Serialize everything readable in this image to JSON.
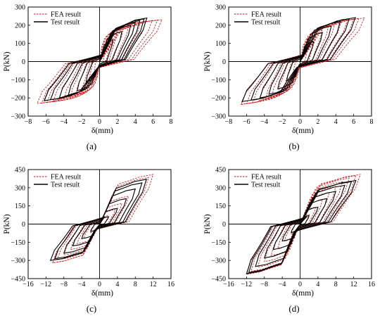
{
  "chart_data": [
    {
      "type": "line",
      "panel_label": "(a)",
      "xlabel": "δ(mm)",
      "ylabel": "P(kN)",
      "xlim": [
        -8,
        8
      ],
      "ylim": [
        -300,
        300
      ],
      "xticks": [
        -8,
        -6,
        -4,
        -2,
        0,
        2,
        4,
        6,
        8
      ],
      "yticks": [
        -300,
        -200,
        -100,
        0,
        100,
        200,
        300
      ],
      "legend_position": "top-left",
      "series": [
        {
          "name": "FEA result",
          "style": "dashed",
          "color": "#cc1111",
          "cycles": [
            [
              0.8,
              120
            ],
            [
              1.4,
              160
            ],
            [
              2.0,
              180
            ],
            [
              2.7,
              195
            ],
            [
              3.3,
              205
            ],
            [
              4.0,
              212
            ],
            [
              4.6,
              218
            ],
            [
              5.2,
              222
            ],
            [
              5.9,
              226
            ],
            [
              6.5,
              229
            ],
            [
              7.0,
              231
            ]
          ],
          "negative_cycles": [
            [
              -0.8,
              -120
            ],
            [
              -1.4,
              -160
            ],
            [
              -2.0,
              -180
            ],
            [
              -2.7,
              -195
            ],
            [
              -3.3,
              -205
            ],
            [
              -4.0,
              -212
            ],
            [
              -4.6,
              -218
            ],
            [
              -5.2,
              -222
            ],
            [
              -5.9,
              -226
            ],
            [
              -6.5,
              -229
            ],
            [
              -7.0,
              -231
            ]
          ],
          "pinch": 0.05
        },
        {
          "name": "Test result",
          "style": "solid",
          "color": "#000000",
          "cycles": [
            [
              1.5,
              120
            ],
            [
              2.5,
              165
            ],
            [
              3.5,
              200
            ],
            [
              4.0,
              215
            ],
            [
              4.5,
              225
            ],
            [
              5.0,
              235
            ],
            [
              5.3,
              240
            ]
          ],
          "negative_cycles": [
            [
              -1.5,
              -110
            ],
            [
              -2.5,
              -160
            ],
            [
              -3.5,
              -185
            ],
            [
              -4.5,
              -200
            ],
            [
              -5.5,
              -210
            ],
            [
              -6.2,
              -215
            ]
          ],
          "pinch": 0.1
        }
      ]
    },
    {
      "type": "line",
      "panel_label": "(b)",
      "xlabel": "δ(mm)",
      "ylabel": "P(kN)",
      "xlim": [
        -8,
        8
      ],
      "ylim": [
        -300,
        300
      ],
      "xticks": [
        -8,
        -6,
        -4,
        -2,
        0,
        2,
        4,
        6,
        8
      ],
      "yticks": [
        -300,
        -200,
        -100,
        0,
        100,
        200,
        300
      ],
      "legend_position": "top-left",
      "series": [
        {
          "name": "FEA result",
          "style": "dashed",
          "color": "#cc1111",
          "cycles": [
            [
              1.0,
              120
            ],
            [
              1.8,
              160
            ],
            [
              2.5,
              185
            ],
            [
              3.2,
              200
            ],
            [
              3.9,
              212
            ],
            [
              4.6,
              220
            ],
            [
              5.3,
              228
            ],
            [
              6.0,
              234
            ],
            [
              6.6,
              238
            ],
            [
              7.2,
              240
            ]
          ],
          "negative_cycles": [
            [
              -1.0,
              -120
            ],
            [
              -1.8,
              -160
            ],
            [
              -2.5,
              -185
            ],
            [
              -3.2,
              -200
            ],
            [
              -3.9,
              -212
            ],
            [
              -4.6,
              -220
            ],
            [
              -5.3,
              -226
            ],
            [
              -6.0,
              -232
            ],
            [
              -6.6,
              -236
            ]
          ],
          "pinch": 0.05
        },
        {
          "name": "Test result",
          "style": "solid",
          "color": "#000000",
          "cycles": [
            [
              1.5,
              110
            ],
            [
              2.5,
              160
            ],
            [
              3.5,
              195
            ],
            [
              4.5,
              220
            ],
            [
              5.5,
              235
            ],
            [
              6.2,
              242
            ]
          ],
          "negative_cycles": [
            [
              -1.5,
              -105
            ],
            [
              -2.5,
              -150
            ],
            [
              -3.5,
              -180
            ],
            [
              -4.5,
              -200
            ],
            [
              -5.5,
              -212
            ],
            [
              -6.5,
              -220
            ]
          ],
          "pinch": 0.2
        }
      ]
    },
    {
      "type": "line",
      "panel_label": "(c)",
      "xlabel": "δ(mm)",
      "ylabel": "P(kN)",
      "xlim": [
        -16,
        16
      ],
      "ylim": [
        -450,
        450
      ],
      "xticks": [
        -16,
        -12,
        -8,
        -4,
        0,
        4,
        8,
        12,
        16
      ],
      "yticks": [
        -450,
        -300,
        -150,
        0,
        150,
        300,
        450
      ],
      "legend_position": "top-left",
      "series": [
        {
          "name": "FEA result",
          "style": "dashed",
          "color": "#cc1111",
          "cycles": [
            [
              2.0,
              70
            ],
            [
              3.5,
              120
            ],
            [
              5.0,
              170
            ],
            [
              6.5,
              230
            ],
            [
              8.0,
              290
            ],
            [
              9.5,
              340
            ],
            [
              11.0,
              385
            ],
            [
              12.0,
              410
            ]
          ],
          "negative_cycles": [
            [
              -2.0,
              -70
            ],
            [
              -3.5,
              -115
            ],
            [
              -5.0,
              -160
            ],
            [
              -6.5,
              -210
            ],
            [
              -8.0,
              -255
            ],
            [
              -9.5,
              -295
            ],
            [
              -10.5,
              -320
            ]
          ],
          "pinch": 0.35
        },
        {
          "name": "Test result",
          "style": "solid",
          "color": "#000000",
          "cycles": [
            [
              2.0,
              60
            ],
            [
              4.0,
              130
            ],
            [
              6.0,
              210
            ],
            [
              8.0,
              290
            ],
            [
              9.5,
              340
            ],
            [
              10.5,
              370
            ]
          ],
          "negative_cycles": [
            [
              -2.0,
              -60
            ],
            [
              -4.0,
              -120
            ],
            [
              -6.0,
              -180
            ],
            [
              -8.0,
              -240
            ],
            [
              -10.0,
              -285
            ],
            [
              -11.0,
              -300
            ]
          ],
          "pinch": 0.3
        }
      ]
    },
    {
      "type": "line",
      "panel_label": "(d)",
      "xlabel": "δ(mm)",
      "ylabel": "P(kN)",
      "xlim": [
        -16,
        16
      ],
      "ylim": [
        -450,
        450
      ],
      "xticks": [
        -16,
        -12,
        -8,
        -4,
        0,
        4,
        8,
        12,
        16
      ],
      "yticks": [
        -450,
        -300,
        -150,
        0,
        150,
        300,
        450
      ],
      "legend_position": "top-left",
      "series": [
        {
          "name": "FEA result",
          "style": "dashed",
          "color": "#cc1111",
          "cycles": [
            [
              2.0,
              80
            ],
            [
              3.5,
              140
            ],
            [
              5.0,
              200
            ],
            [
              6.5,
              260
            ],
            [
              8.0,
              310
            ],
            [
              9.5,
              350
            ],
            [
              11.0,
              380
            ],
            [
              12.5,
              400
            ],
            [
              13.5,
              410
            ]
          ],
          "negative_cycles": [
            [
              -2.0,
              -80
            ],
            [
              -3.5,
              -140
            ],
            [
              -5.0,
              -200
            ],
            [
              -6.5,
              -260
            ],
            [
              -8.0,
              -310
            ],
            [
              -9.5,
              -355
            ],
            [
              -11.0,
              -390
            ],
            [
              -12.0,
              -415
            ]
          ],
          "pinch": 0.4
        },
        {
          "name": "Test result",
          "style": "solid",
          "color": "#000000",
          "cycles": [
            [
              2.0,
              70
            ],
            [
              4.0,
              140
            ],
            [
              6.0,
              210
            ],
            [
              8.0,
              270
            ],
            [
              10.0,
              320
            ],
            [
              11.5,
              350
            ],
            [
              12.5,
              360
            ]
          ],
          "negative_cycles": [
            [
              -2.0,
              -70
            ],
            [
              -4.0,
              -140
            ],
            [
              -6.0,
              -210
            ],
            [
              -8.0,
              -280
            ],
            [
              -10.0,
              -350
            ],
            [
              -11.5,
              -400
            ],
            [
              -12.0,
              -410
            ]
          ],
          "pinch": 0.35
        }
      ]
    }
  ]
}
